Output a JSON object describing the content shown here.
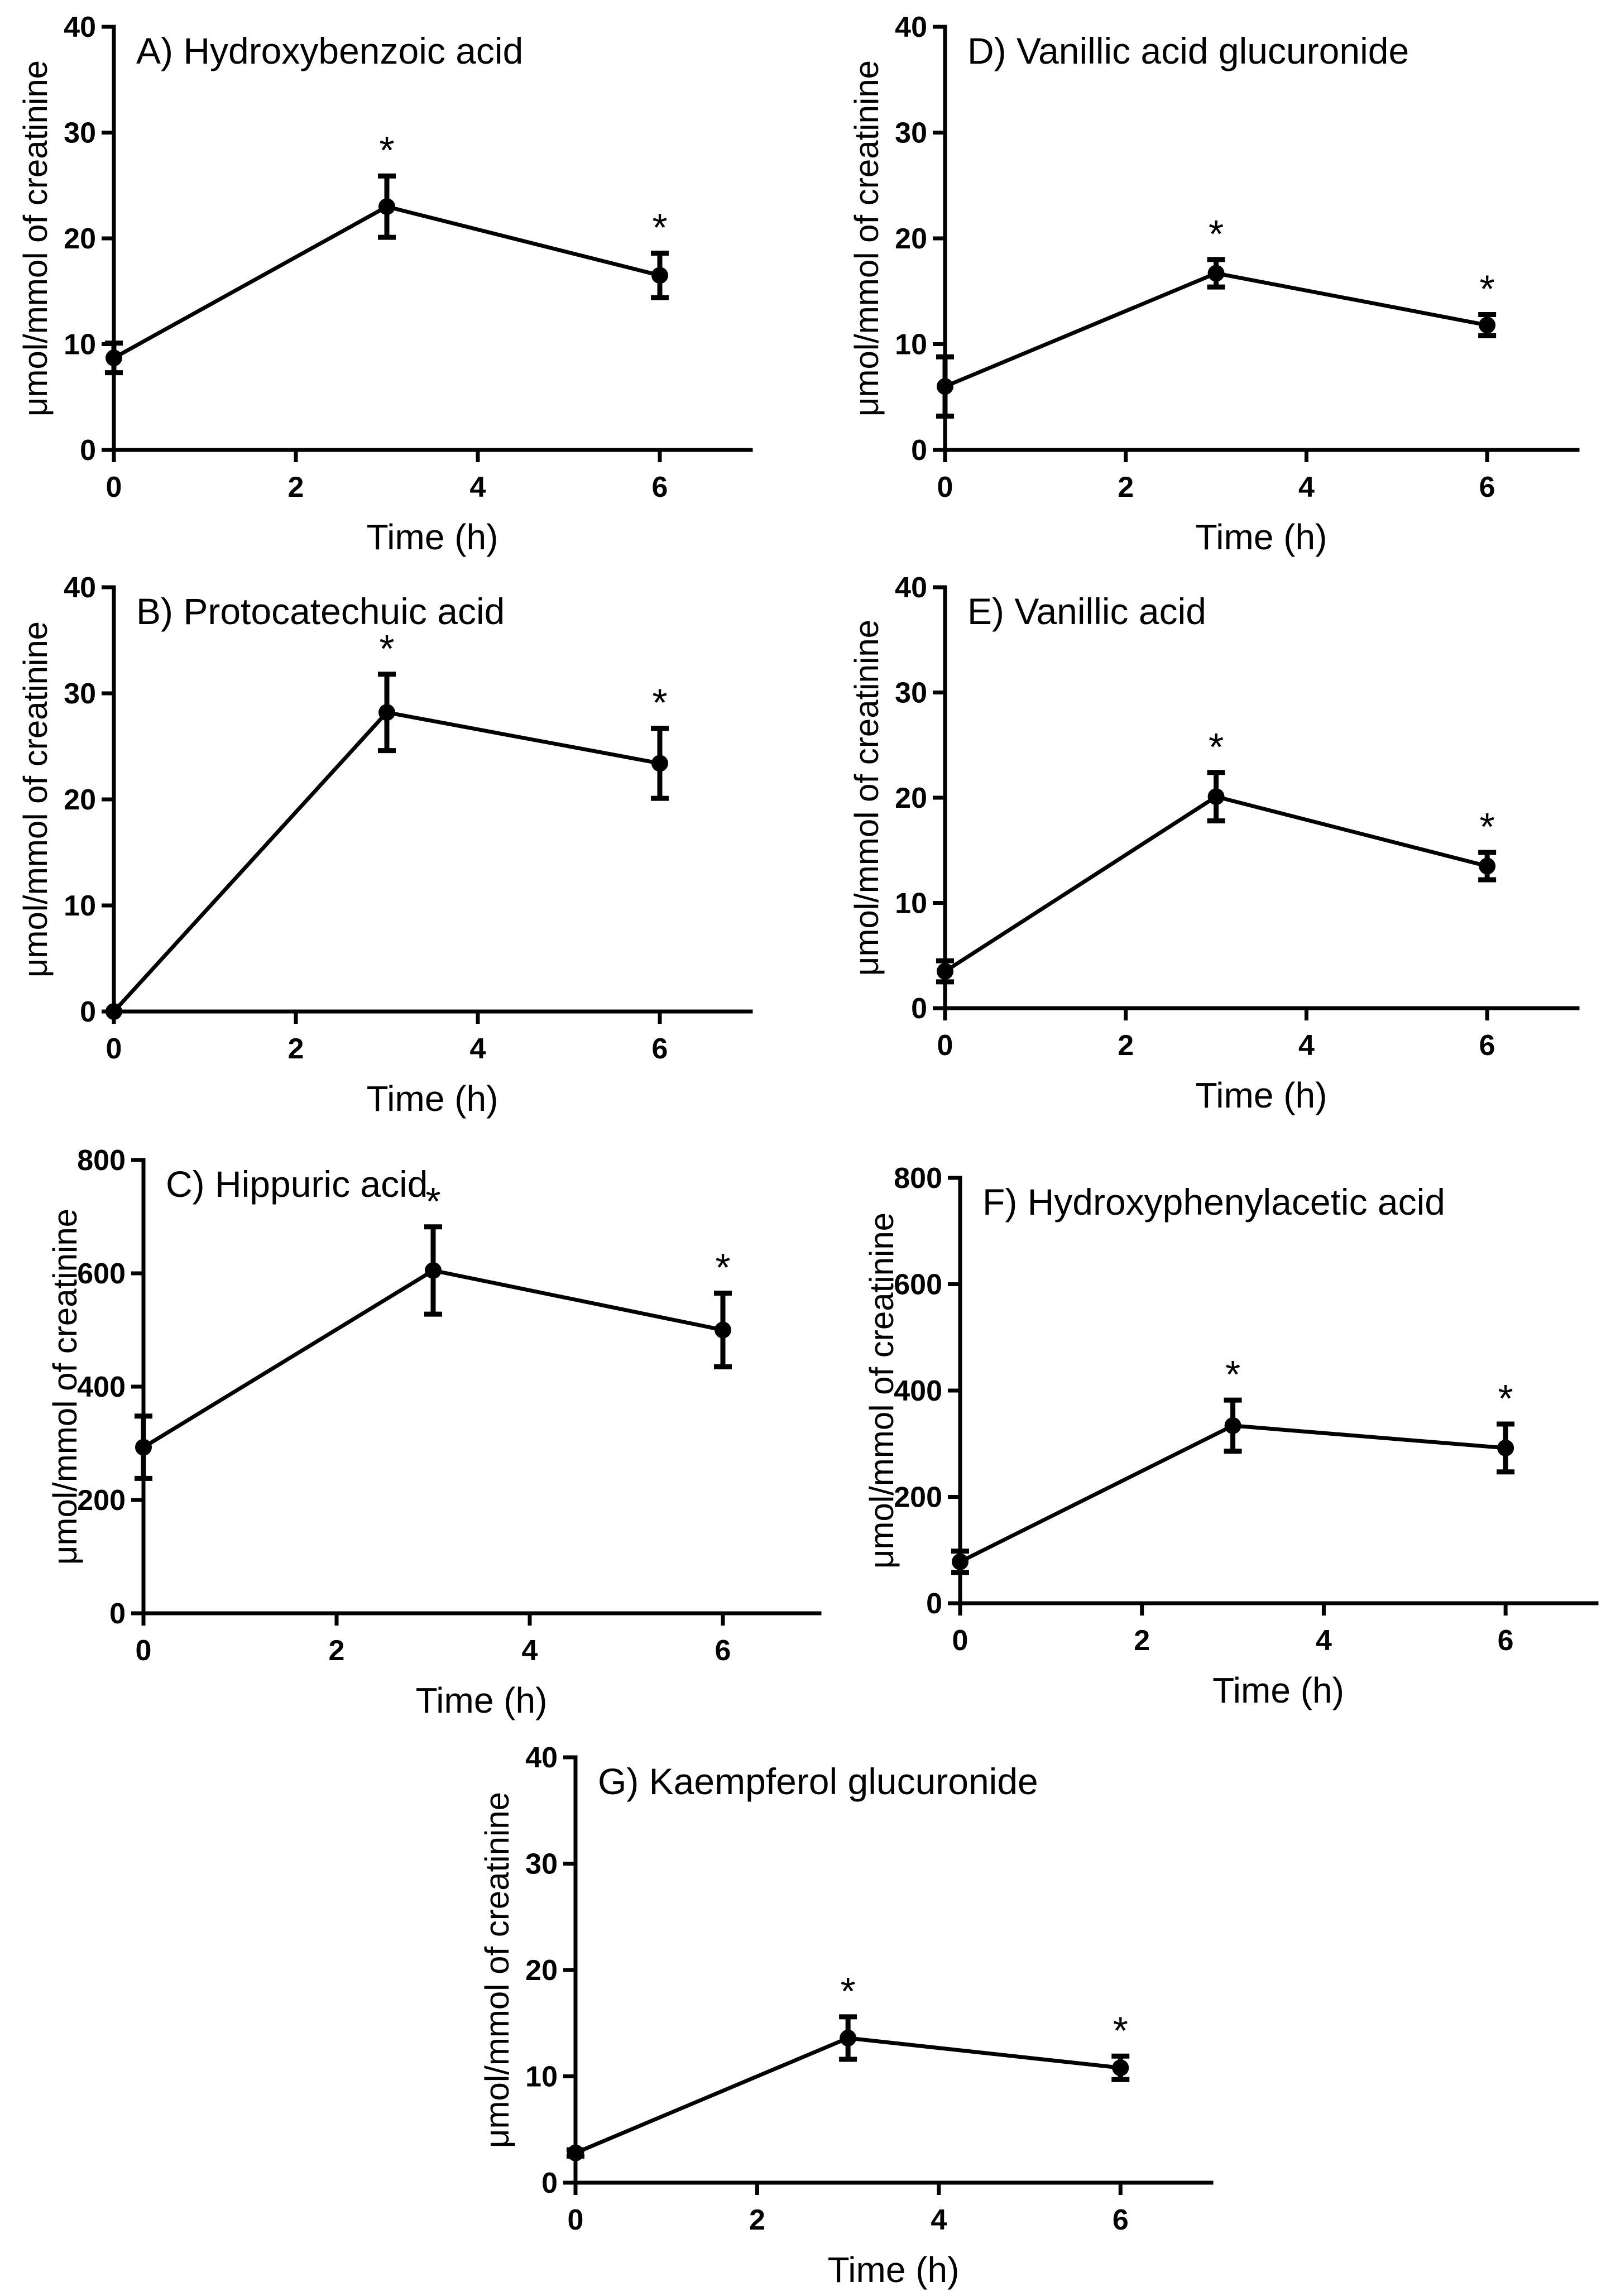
{
  "chart_data": [
    {
      "type": "line",
      "title": "A) Hydroxybenzoic acid",
      "xlabel": "Time (h)",
      "ylabel": "μmol/mmol of creatinine",
      "xlim": [
        0,
        7
      ],
      "ylim": [
        0,
        40
      ],
      "xticks": [
        0,
        2,
        4,
        6
      ],
      "yticks": [
        0,
        10,
        20,
        30,
        40
      ],
      "x": [
        0,
        3,
        6
      ],
      "values": [
        8.7,
        23.0,
        16.5
      ],
      "errors": [
        1.4,
        2.9,
        2.1
      ],
      "significance": [
        "",
        "*",
        "*"
      ]
    },
    {
      "type": "line",
      "title": "B) Protocatechuic acid",
      "xlabel": "Time (h)",
      "ylabel": "μmol/mmol of creatinine",
      "xlim": [
        0,
        7
      ],
      "ylim": [
        0,
        40
      ],
      "xticks": [
        0,
        2,
        4,
        6
      ],
      "yticks": [
        0,
        10,
        20,
        30,
        40
      ],
      "x": [
        0,
        3,
        6
      ],
      "values": [
        0,
        28.2,
        23.4
      ],
      "errors": [
        0,
        3.6,
        3.3
      ],
      "significance": [
        "",
        "*",
        "*"
      ]
    },
    {
      "type": "line",
      "title": "C) Hippuric acid",
      "xlabel": "Time (h)",
      "ylabel": "μmol/mmol of creatinine",
      "xlim": [
        0,
        7
      ],
      "ylim": [
        0,
        800
      ],
      "xticks": [
        0,
        2,
        4,
        6
      ],
      "yticks": [
        0,
        200,
        400,
        600,
        800
      ],
      "x": [
        0,
        3,
        6
      ],
      "values": [
        293,
        605,
        500
      ],
      "errors": [
        55,
        77,
        65
      ],
      "significance": [
        "",
        "*",
        "*"
      ]
    },
    {
      "type": "line",
      "title": "D) Vanillic acid glucuronide",
      "xlabel": "Time (h)",
      "ylabel": "μmol/mmol of creatinine",
      "xlim": [
        0,
        7
      ],
      "ylim": [
        0,
        40
      ],
      "xticks": [
        0,
        2,
        4,
        6
      ],
      "yticks": [
        0,
        10,
        20,
        30,
        40
      ],
      "x": [
        0,
        3,
        6
      ],
      "values": [
        6.0,
        16.7,
        11.8
      ],
      "errors": [
        2.8,
        1.3,
        1.0
      ],
      "significance": [
        "",
        "*",
        "*"
      ]
    },
    {
      "type": "line",
      "title": "E) Vanillic acid",
      "xlabel": "Time (h)",
      "ylabel": "μmol/mmol of creatinine",
      "xlim": [
        0,
        7
      ],
      "ylim": [
        0,
        40
      ],
      "xticks": [
        0,
        2,
        4,
        6
      ],
      "yticks": [
        0,
        10,
        20,
        30,
        40
      ],
      "x": [
        0,
        3,
        6
      ],
      "values": [
        3.5,
        20.1,
        13.5
      ],
      "errors": [
        1.0,
        2.3,
        1.3
      ],
      "significance": [
        "",
        "*",
        "*"
      ]
    },
    {
      "type": "line",
      "title": "F) Hydroxyphenylacetic acid",
      "xlabel": "Time (h)",
      "ylabel": "μmol/mmol of creatinine",
      "xlim": [
        0,
        7
      ],
      "ylim": [
        0,
        800
      ],
      "xticks": [
        0,
        2,
        4,
        6
      ],
      "yticks": [
        0,
        200,
        400,
        600,
        800
      ],
      "x": [
        0,
        3,
        6
      ],
      "values": [
        78,
        334,
        292
      ],
      "errors": [
        20,
        48,
        45
      ],
      "significance": [
        "",
        "*",
        "*"
      ]
    },
    {
      "type": "line",
      "title": "G) Kaempferol glucuronide",
      "xlabel": "Time (h)",
      "ylabel": "μmol/mmol of creatinine",
      "xlim": [
        0,
        7
      ],
      "ylim": [
        0,
        40
      ],
      "xticks": [
        0,
        2,
        4,
        6
      ],
      "yticks": [
        0,
        10,
        20,
        30,
        40
      ],
      "x": [
        0,
        3,
        6
      ],
      "values": [
        2.8,
        13.6,
        10.8
      ],
      "errors": [
        0.3,
        2.0,
        1.1
      ],
      "significance": [
        "",
        "*",
        "*"
      ]
    }
  ]
}
